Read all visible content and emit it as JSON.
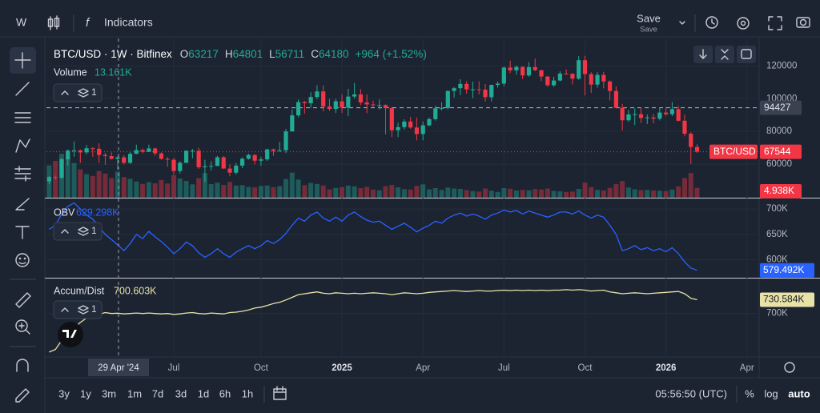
{
  "top_bar": {
    "timeframe": "W",
    "indicators": "Indicators",
    "save": "Save",
    "save_sub": "Save"
  },
  "chart_data": {
    "type": "candlestick",
    "symbol_title": "BTC/USD · 1W · Bitfinex",
    "symbol": "BTC/USD",
    "ohlc_labels": [
      "O",
      "H",
      "L",
      "C"
    ],
    "hover_index": 11,
    "hover_change": "+964 (+1.52%)",
    "layers": 1,
    "up_color": "#22ab94",
    "down_color": "#f23645",
    "ylim": [
      39500,
      136800
    ],
    "yticks": [
      60000,
      80000,
      100000,
      120000
    ],
    "horizontal_line": {
      "value": 94427
    },
    "xticks": [
      {
        "value": 20,
        "label": "Jul"
      },
      {
        "value": 34,
        "label": "Oct"
      },
      {
        "value": 47,
        "label": "2025"
      },
      {
        "value": 60,
        "label": "Apr"
      },
      {
        "value": 73,
        "label": "Jul"
      },
      {
        "value": 86,
        "label": "Oct"
      },
      {
        "value": 99,
        "label": "2026"
      },
      {
        "value": 112,
        "label": "Apr"
      }
    ],
    "crosshair_label": "29 Apr '24",
    "candles": [
      [
        49500,
        52600,
        47700,
        52100
      ],
      [
        52100,
        53000,
        50600,
        51700
      ],
      [
        51700,
        64000,
        50900,
        63000
      ],
      [
        63000,
        69000,
        59100,
        68300
      ],
      [
        68300,
        73800,
        64600,
        68400
      ],
      [
        68400,
        68900,
        60800,
        67200
      ],
      [
        67200,
        71800,
        66000,
        69700
      ],
      [
        69700,
        70300,
        64500,
        69400
      ],
      [
        69400,
        72700,
        60700,
        65600
      ],
      [
        65600,
        66900,
        59600,
        64900
      ],
      [
        64900,
        67200,
        62800,
        63217
      ],
      [
        63217,
        64801,
        56711,
        64180
      ],
      [
        64180,
        65500,
        59800,
        60800
      ],
      [
        60800,
        67400,
        60200,
        66300
      ],
      [
        66300,
        71900,
        66100,
        68600
      ],
      [
        68600,
        69500,
        66600,
        67500
      ],
      [
        67500,
        71900,
        67500,
        69600
      ],
      [
        69600,
        70000,
        65000,
        66600
      ],
      [
        66600,
        67200,
        62800,
        63200
      ],
      [
        63200,
        64500,
        58500,
        62700
      ],
      [
        62700,
        63800,
        53500,
        55800
      ],
      [
        55800,
        61800,
        54300,
        60800
      ],
      [
        60800,
        68400,
        60700,
        68200
      ],
      [
        68200,
        69300,
        63500,
        68200
      ],
      [
        68200,
        70000,
        57100,
        58100
      ],
      [
        58100,
        62700,
        49100,
        58700
      ],
      [
        58700,
        61800,
        56100,
        58900
      ],
      [
        58900,
        65000,
        58800,
        64200
      ],
      [
        64200,
        64900,
        57200,
        57300
      ],
      [
        57300,
        59800,
        52600,
        54800
      ],
      [
        54800,
        60700,
        53600,
        59100
      ],
      [
        59100,
        64100,
        57500,
        63300
      ],
      [
        63300,
        66400,
        62700,
        65600
      ],
      [
        65600,
        66000,
        59800,
        62100
      ],
      [
        62100,
        64500,
        58900,
        62900
      ],
      [
        62900,
        69400,
        62000,
        69000
      ],
      [
        69000,
        69500,
        65100,
        68000
      ],
      [
        68000,
        73600,
        67500,
        68500
      ],
      [
        68500,
        81500,
        66800,
        80000
      ],
      [
        80000,
        93400,
        79800,
        89800
      ],
      [
        89800,
        99500,
        88600,
        97900
      ],
      [
        97900,
        98700,
        90800,
        97200
      ],
      [
        97200,
        103900,
        94500,
        101000
      ],
      [
        101000,
        108300,
        99800,
        104400
      ],
      [
        104400,
        108200,
        92200,
        95200
      ],
      [
        95200,
        99800,
        92600,
        93700
      ],
      [
        93700,
        99900,
        91300,
        98400
      ],
      [
        98400,
        102700,
        91200,
        94500
      ],
      [
        94500,
        106000,
        89300,
        101300
      ],
      [
        101300,
        109500,
        100100,
        102600
      ],
      [
        102600,
        105800,
        96100,
        97700
      ],
      [
        97700,
        102500,
        91200,
        96500
      ],
      [
        96500,
        98800,
        94700,
        96100
      ],
      [
        96100,
        99500,
        93400,
        96100
      ],
      [
        96100,
        96500,
        78200,
        94200
      ],
      [
        94200,
        95000,
        76600,
        80700
      ],
      [
        80700,
        85300,
        76600,
        82600
      ],
      [
        82600,
        87400,
        81200,
        86000
      ],
      [
        86000,
        88800,
        81600,
        82400
      ],
      [
        82400,
        88500,
        74500,
        78400
      ],
      [
        78400,
        86100,
        74600,
        83700
      ],
      [
        83700,
        88500,
        83100,
        87500
      ],
      [
        87500,
        95700,
        86600,
        94100
      ],
      [
        94100,
        97900,
        92800,
        94300
      ],
      [
        94300,
        104900,
        93400,
        104700
      ],
      [
        104700,
        107100,
        100700,
        106400
      ],
      [
        106400,
        111900,
        102100,
        109000
      ],
      [
        109000,
        110700,
        103100,
        105700
      ],
      [
        105700,
        110400,
        100400,
        105700
      ],
      [
        105700,
        110600,
        102600,
        105500
      ],
      [
        105500,
        108900,
        98200,
        100900
      ],
      [
        100900,
        108500,
        98300,
        108400
      ],
      [
        108400,
        110500,
        106700,
        109200
      ],
      [
        109200,
        119500,
        107500,
        119000
      ],
      [
        119000,
        123200,
        115700,
        117300
      ],
      [
        117300,
        120200,
        114700,
        119400
      ],
      [
        119400,
        119800,
        112000,
        114200
      ],
      [
        114200,
        122300,
        113400,
        119300
      ],
      [
        119300,
        124500,
        116800,
        117400
      ],
      [
        117400,
        117600,
        110700,
        113500
      ],
      [
        113500,
        113800,
        107300,
        108200
      ],
      [
        108200,
        113400,
        107200,
        111100
      ],
      [
        111100,
        116700,
        110600,
        115300
      ],
      [
        115300,
        117900,
        114700,
        115200
      ],
      [
        115200,
        115500,
        108700,
        112200
      ],
      [
        112200,
        126000,
        111600,
        123500
      ],
      [
        123500,
        126200,
        102000,
        115000
      ],
      [
        115000,
        116100,
        103500,
        108600
      ],
      [
        108600,
        116200,
        106700,
        114500
      ],
      [
        114500,
        116400,
        106300,
        110500
      ],
      [
        110500,
        111100,
        99000,
        104700
      ],
      [
        104700,
        107500,
        94000,
        94400
      ],
      [
        94400,
        96700,
        80600,
        86800
      ],
      [
        86800,
        93100,
        85800,
        90400
      ],
      [
        90400,
        94100,
        83900,
        90500
      ],
      [
        90500,
        94600,
        85200,
        88200
      ],
      [
        88200,
        90300,
        84500,
        88500
      ],
      [
        88500,
        90600,
        84900,
        87800
      ],
      [
        87800,
        94700,
        86700,
        91500
      ],
      [
        91500,
        94800,
        89400,
        90500
      ],
      [
        90500,
        97900,
        89300,
        93600
      ],
      [
        93600,
        95500,
        86200,
        86500
      ],
      [
        86500,
        90300,
        77000,
        78600
      ],
      [
        78600,
        79500,
        60100,
        70500
      ],
      [
        70500,
        72100,
        66800,
        67544
      ]
    ],
    "volume": {
      "name": "Volume",
      "legend_value": "13.161K",
      "last_value_label": "4.938K",
      "ylim": [
        0,
        80
      ],
      "values": [
        16.2,
        18.5,
        22.1,
        20.3,
        17.4,
        14.2,
        11.8,
        10.9,
        13.4,
        12.1,
        9.8,
        13.161,
        10.4,
        9.5,
        8.1,
        6.9,
        7.8,
        7.2,
        8.9,
        7.1,
        11.3,
        9.6,
        8.4,
        6.7,
        9.8,
        12.4,
        6.8,
        7.5,
        6.4,
        7.9,
        6.1,
        6.3,
        5.4,
        5.2,
        5.9,
        6.1,
        5.3,
        5.8,
        9.4,
        12.6,
        9.1,
        6.3,
        7.4,
        6.9,
        6.1,
        4.2,
        4.9,
        5.3,
        6.1,
        5.7,
        4.8,
        5.4,
        4.1,
        3.7,
        5.8,
        6.4,
        5.2,
        4.3,
        4.1,
        5.9,
        6.7,
        4.2,
        4.8,
        3.9,
        5.1,
        4.6,
        4.4,
        3.8,
        3.3,
        3.1,
        4.6,
        3.5,
        2.9,
        4.8,
        4.5,
        3.6,
        3.9,
        3.7,
        4.3,
        4.1,
        4.6,
        3.4,
        3.2,
        2.9,
        3.1,
        4.4,
        7.6,
        5.3,
        3.9,
        3.6,
        4.9,
        6.8,
        8.4,
        5.1,
        4.2,
        3.8,
        3.9,
        3.6,
        3.5,
        3.3,
        4.1,
        5.7,
        9.8,
        12.4,
        4.938
      ]
    },
    "indicators": [
      {
        "name": "OBV",
        "color": "#2962ff",
        "label_text_color": "#ffffff",
        "legend_value": "629.298K",
        "last_value_label": "579.492K",
        "layers": 1,
        "ylim": [
          568,
          719
        ],
        "yticks": [
          {
            "value": 600,
            "label": "600K"
          },
          {
            "value": 650,
            "label": "650K"
          },
          {
            "value": 700,
            "label": "700K"
          }
        ],
        "values": [
          660,
          668,
          690,
          705,
          712,
          700,
          688,
          680,
          665,
          650,
          640,
          629.298,
          618,
          632,
          650,
          642,
          656,
          645,
          636,
          625,
          612,
          622,
          635,
          628,
          614,
          605,
          612,
          622,
          612,
          605,
          615,
          622,
          628,
          622,
          628,
          638,
          632,
          640,
          652,
          668,
          682,
          676,
          688,
          694,
          682,
          676,
          684,
          676,
          688,
          694,
          685,
          678,
          674,
          676,
          668,
          660,
          666,
          672,
          664,
          655,
          662,
          668,
          676,
          672,
          682,
          688,
          692,
          686,
          690,
          686,
          680,
          688,
          692,
          698,
          694,
          697,
          690,
          696,
          692,
          688,
          684,
          688,
          694,
          694,
          690,
          696,
          688,
          682,
          688,
          684,
          668,
          650,
          618,
          622,
          628,
          620,
          624,
          618,
          622,
          616,
          624,
          612,
          596,
          584,
          579.492
        ]
      },
      {
        "name": "Accum/Dist",
        "color": "#e8e2a6",
        "label_text_color": "#131722",
        "legend_value": "700.603K",
        "last_value_label": "730.584K",
        "layers": 1,
        "ylim": [
          605,
          776
        ],
        "yticks": [
          {
            "value": 700,
            "label": "700K"
          }
        ],
        "values": [
          614,
          620,
          640,
          655,
          668,
          680,
          690,
          694,
          698,
          702,
          700,
          700.603,
          699,
          700,
          701,
          700,
          701,
          700,
          699,
          700,
          698,
          699,
          701,
          702,
          700,
          699,
          701,
          700,
          699,
          702,
          703,
          705,
          708,
          712,
          714,
          718,
          722,
          725,
          730,
          736,
          742,
          744,
          746,
          748,
          745,
          744,
          746,
          745,
          744,
          745,
          744,
          745,
          746,
          745,
          744,
          742,
          744,
          746,
          745,
          744,
          745,
          747,
          748,
          749,
          750,
          751,
          750,
          749,
          750,
          751,
          750,
          750,
          751,
          752,
          751,
          752,
          751,
          752,
          751,
          752,
          751,
          752,
          752,
          753,
          752,
          753,
          752,
          750,
          751,
          752,
          748,
          746,
          744,
          745,
          746,
          745,
          744,
          745,
          746,
          747,
          748,
          749,
          744,
          734,
          730.584
        ]
      }
    ]
  },
  "bottom_bar": {
    "time_ranges": [
      "3y",
      "1y",
      "3m",
      "1m",
      "7d",
      "3d",
      "1d",
      "6h",
      "1h"
    ],
    "clock": "05:56:50 (UTC)",
    "percent": "%",
    "log": "log",
    "auto": "auto"
  }
}
